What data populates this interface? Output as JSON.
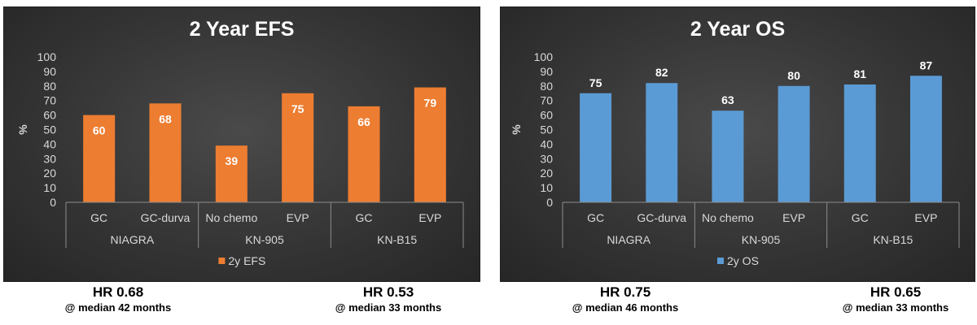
{
  "chart_data": [
    {
      "type": "bar",
      "title": "2 Year EFS",
      "ylabel": "%",
      "ylim": [
        0,
        100
      ],
      "yticks": [
        0,
        10,
        20,
        30,
        40,
        50,
        60,
        70,
        80,
        90,
        100
      ],
      "categories": [
        "GC",
        "GC-durva",
        "No chemo",
        "EVP",
        "GC",
        "EVP"
      ],
      "groups": [
        {
          "label": "NIAGRA",
          "size": 2
        },
        {
          "label": "KN-905",
          "size": 2
        },
        {
          "label": "KN-B15",
          "size": 2
        }
      ],
      "series": [
        {
          "name": "2y EFS",
          "values": [
            60,
            68,
            39,
            75,
            66,
            79
          ],
          "color": "#ED7D31"
        }
      ],
      "data_label_position": "inside-top",
      "legend": "bottom",
      "grid": false
    },
    {
      "type": "bar",
      "title": "2 Year OS",
      "ylabel": "%",
      "ylim": [
        0,
        100
      ],
      "yticks": [
        0,
        10,
        20,
        30,
        40,
        50,
        60,
        70,
        80,
        90,
        100
      ],
      "categories": [
        "GC",
        "GC-durva",
        "No chemo",
        "EVP",
        "GC",
        "EVP"
      ],
      "groups": [
        {
          "label": "NIAGRA",
          "size": 2
        },
        {
          "label": "KN-905",
          "size": 2
        },
        {
          "label": "KN-B15",
          "size": 2
        }
      ],
      "series": [
        {
          "name": "2y OS",
          "values": [
            75,
            82,
            63,
            80,
            81,
            87
          ],
          "color": "#5B9BD5"
        }
      ],
      "data_label_position": "above",
      "legend": "bottom",
      "grid": false
    }
  ],
  "hazard_ratios": [
    {
      "hr": "HR 0.68",
      "note": "@ median 42 months"
    },
    {
      "hr": "HR 0.53",
      "note": "@ median 33 months"
    },
    {
      "hr": "HR 0.75",
      "note": "@ median 46 months"
    },
    {
      "hr": "HR 0.65",
      "note": "@ median 33 months"
    }
  ]
}
